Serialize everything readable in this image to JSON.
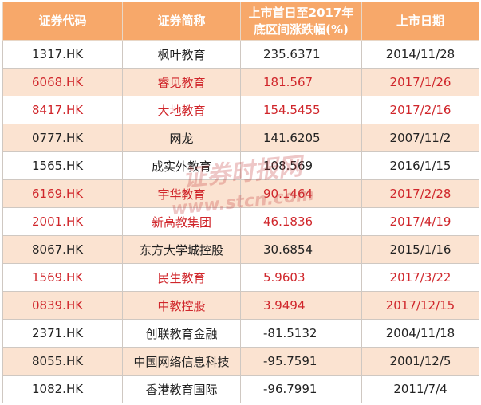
{
  "table": {
    "headers": [
      "证券代码",
      "证券简称",
      "上市首日至2017年\n底区间涨跌幅(%)",
      "上市日期"
    ],
    "rows": [
      {
        "code": "1317.HK",
        "name": "枫叶教育",
        "change": "235.6371",
        "date": "2014/11/28",
        "highlight": false
      },
      {
        "code": "6068.HK",
        "name": "睿见教育",
        "change": "181.567",
        "date": "2017/1/26",
        "highlight": true
      },
      {
        "code": "8417.HK",
        "name": "大地教育",
        "change": "154.5455",
        "date": "2017/2/16",
        "highlight": true
      },
      {
        "code": "0777.HK",
        "name": "网龙",
        "change": "141.6205",
        "date": "2007/11/2",
        "highlight": false
      },
      {
        "code": "1565.HK",
        "name": "成实外教育",
        "change": "108.569",
        "date": "2016/1/15",
        "highlight": false
      },
      {
        "code": "6169.HK",
        "name": "宇华教育",
        "change": "90.1464",
        "date": "2017/2/28",
        "highlight": true
      },
      {
        "code": "2001.HK",
        "name": "新高教集团",
        "change": "46.1836",
        "date": "2017/4/19",
        "highlight": true
      },
      {
        "code": "8067.HK",
        "name": "东方大学城控股",
        "change": "30.6854",
        "date": "2015/1/16",
        "highlight": false
      },
      {
        "code": "1569.HK",
        "name": "民生教育",
        "change": "5.9603",
        "date": "2017/3/22",
        "highlight": true
      },
      {
        "code": "0839.HK",
        "name": "中教控股",
        "change": "3.9494",
        "date": "2017/12/15",
        "highlight": true
      },
      {
        "code": "2371.HK",
        "name": "创联教育金融",
        "change": "-81.5132",
        "date": "2004/11/18",
        "highlight": false
      },
      {
        "code": "8055.HK",
        "name": "中国网络信息科技",
        "change": "-95.7591",
        "date": "2001/12/5",
        "highlight": false
      },
      {
        "code": "1082.HK",
        "name": "香港教育国际",
        "change": "-96.7991",
        "date": "2011/7/4",
        "highlight": false
      }
    ]
  },
  "watermark": {
    "text_top": "证券时报网",
    "text_bottom": "www.stcn.com"
  },
  "colors": {
    "header_bg": "#f7a86a",
    "stripe_bg": "#fbe3d1",
    "highlight_text": "#d0262b",
    "normal_text": "#222222"
  }
}
